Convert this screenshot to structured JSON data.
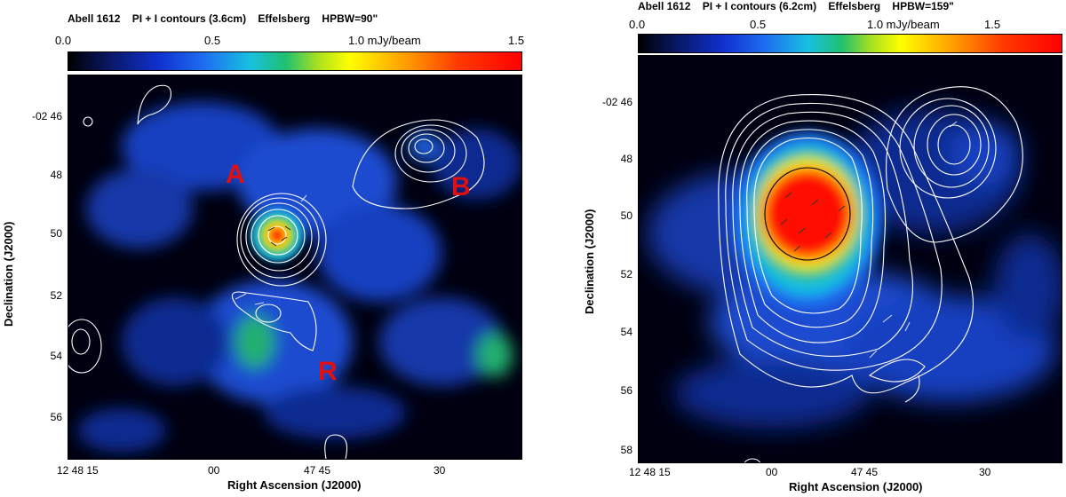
{
  "left": {
    "title": "Abell 1612    PI + I contours (3.6cm)    Effelsberg    HPBW=90\"",
    "colorbar": [
      "0.0",
      "0.5",
      "1.0 mJy/beam",
      "1.5"
    ],
    "yticks": [
      "-02 46",
      "48",
      "50",
      "52",
      "54",
      "56"
    ],
    "xticks": [
      "12 48 15",
      "00",
      "47 45",
      "30"
    ],
    "xlabel": "Right Ascension (J2000)",
    "ylabel": "Declination (J2000)",
    "labels": {
      "a": "A",
      "b": "B",
      "r": "R"
    }
  },
  "right": {
    "title": "Abell 1612    PI + I contours (6.2cm)    Effelsberg    HPBW=159\"",
    "colorbar": [
      "0.0",
      "0.5",
      "1.0 mJy/beam",
      "1.5"
    ],
    "yticks": [
      "-02 46",
      "48",
      "50",
      "52",
      "54",
      "56",
      "58"
    ],
    "xticks": [
      "12 48 15",
      "00",
      "47 45",
      "30"
    ],
    "xlabel": "Right Ascension (J2000)",
    "ylabel": "Declination (J2000)"
  },
  "colors": {
    "source_labels": "#e01010",
    "contours": "#ffffff"
  }
}
